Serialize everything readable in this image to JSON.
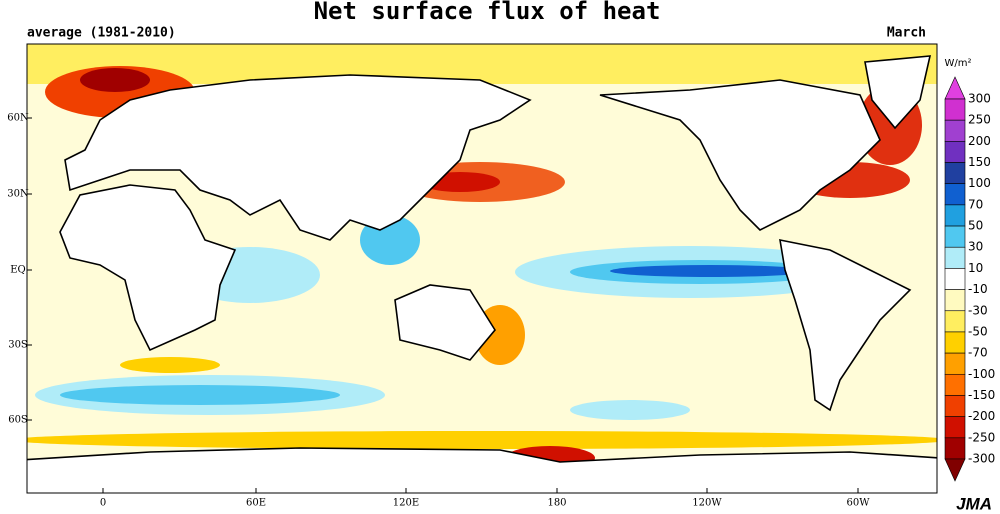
{
  "title": "Net surface flux of heat",
  "subtitle": "average (1981-2010)",
  "month": "March",
  "lat_labels": [
    "60N",
    "30N",
    "EQ",
    "30S",
    "60S"
  ],
  "lon_labels": [
    "0",
    "60E",
    "120E",
    "180",
    "120W",
    "60W"
  ],
  "legend": {
    "unit": "W/m²",
    "labels": [
      "300",
      "250",
      "200",
      "150",
      "100",
      "70",
      "50",
      "30",
      "10",
      "-10",
      "-30",
      "-50",
      "-70",
      "-100",
      "-150",
      "-200",
      "-250",
      "-300"
    ],
    "colors": [
      "#e040e0",
      "#d030d0",
      "#a040d0",
      "#7030c0",
      "#2040a0",
      "#1060d0",
      "#20a0e0",
      "#50c8f0",
      "#b0ecf8",
      "#ffffff",
      "#fffac0",
      "#ffee60",
      "#ffd000",
      "#ffa000",
      "#ff7000",
      "#f04000",
      "#d01000",
      "#a00000",
      "#800000"
    ]
  },
  "credit": "JMA"
}
